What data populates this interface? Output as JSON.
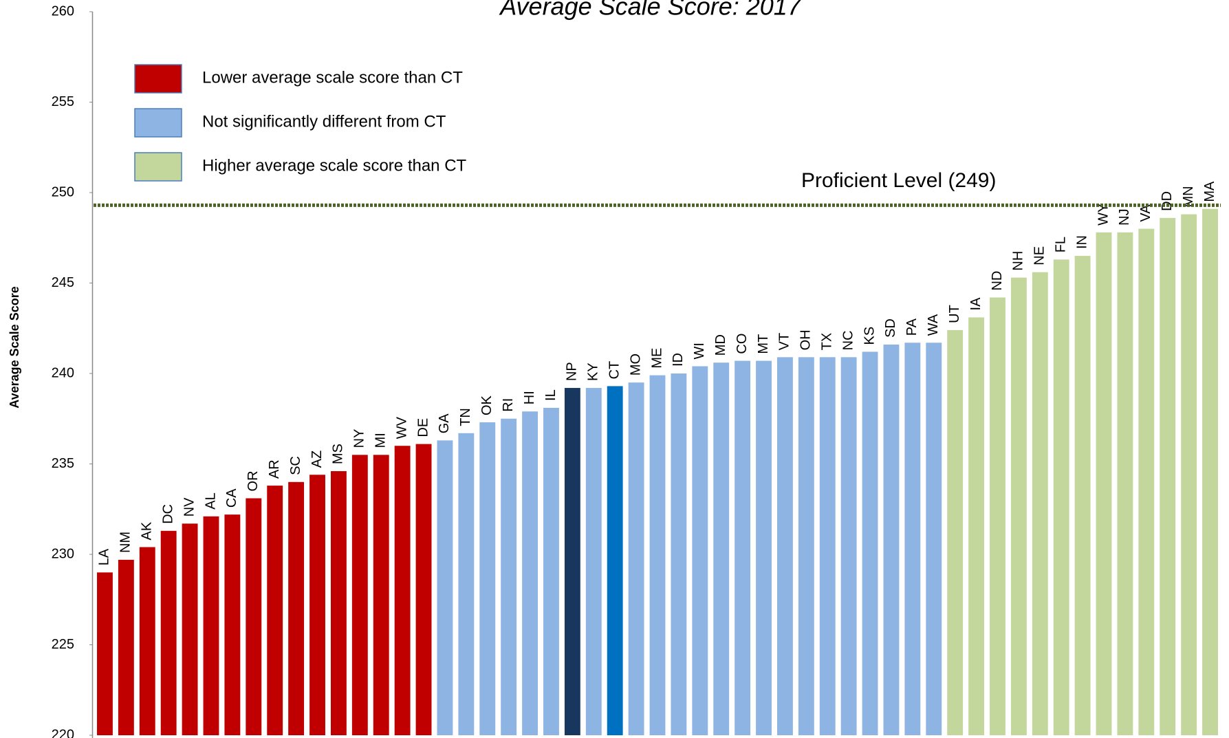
{
  "chart_data": {
    "type": "bar",
    "title": "Average Scale Score: 2017",
    "y_label": "Average Scale Score",
    "categories": [
      "LA",
      "NM",
      "AK",
      "DC",
      "NV",
      "AL",
      "CA",
      "OR",
      "AR",
      "SC",
      "AZ",
      "MS",
      "NY",
      "MI",
      "WV",
      "DE",
      "GA",
      "TN",
      "OK",
      "RI",
      "HI",
      "IL",
      "NP",
      "KY",
      "CT",
      "MO",
      "ME",
      "ID",
      "WI",
      "MD",
      "CO",
      "MT",
      "VT",
      "OH",
      "TX",
      "NC",
      "KS",
      "SD",
      "PA",
      "WA",
      "UT",
      "IA",
      "ND",
      "NH",
      "NE",
      "FL",
      "IN",
      "WY",
      "NJ",
      "VA",
      "DD",
      "MN",
      "MA"
    ],
    "values": [
      229.0,
      229.7,
      230.4,
      231.3,
      231.7,
      232.1,
      232.2,
      233.1,
      233.8,
      234.0,
      234.4,
      234.6,
      235.5,
      235.5,
      236.0,
      236.1,
      236.3,
      236.7,
      237.3,
      237.5,
      237.9,
      238.1,
      239.2,
      239.2,
      239.3,
      239.5,
      239.9,
      240.0,
      240.4,
      240.6,
      240.7,
      240.7,
      240.9,
      240.9,
      240.9,
      240.9,
      241.2,
      241.6,
      241.7,
      241.7,
      242.4,
      243.1,
      244.2,
      245.3,
      245.6,
      246.3,
      246.5,
      247.8,
      247.8,
      248.0,
      248.6,
      248.8,
      249.1
    ],
    "colors": [
      "#c00000",
      "#c00000",
      "#c00000",
      "#c00000",
      "#c00000",
      "#c00000",
      "#c00000",
      "#c00000",
      "#c00000",
      "#c00000",
      "#c00000",
      "#c00000",
      "#c00000",
      "#c00000",
      "#c00000",
      "#c00000",
      "#8db4e2",
      "#8db4e2",
      "#8db4e2",
      "#8db4e2",
      "#8db4e2",
      "#8db4e2",
      "#17375e",
      "#8db4e2",
      "#0070c0",
      "#8db4e2",
      "#8db4e2",
      "#8db4e2",
      "#8db4e2",
      "#8db4e2",
      "#8db4e2",
      "#8db4e2",
      "#8db4e2",
      "#8db4e2",
      "#8db4e2",
      "#8db4e2",
      "#8db4e2",
      "#8db4e2",
      "#8db4e2",
      "#8db4e2",
      "#c3d69b",
      "#c3d69b",
      "#c3d69b",
      "#c3d69b",
      "#c3d69b",
      "#c3d69b",
      "#c3d69b",
      "#c3d69b",
      "#c3d69b",
      "#c3d69b",
      "#c3d69b",
      "#c3d69b",
      "#c3d69b"
    ],
    "legend": [
      {
        "label": "Lower average scale score than CT",
        "color": "#c00000"
      },
      {
        "label": "Not significantly different from CT",
        "color": "#8db4e2"
      },
      {
        "label": "Higher average scale score than CT",
        "color": "#c3d69b"
      }
    ],
    "reference_line": {
      "value": 249.3,
      "label": "Proficient Level (249)",
      "color": "#4f6228"
    },
    "ylim": [
      220,
      260
    ],
    "yticks": [
      220,
      225,
      230,
      235,
      240,
      245,
      250,
      255,
      260
    ]
  }
}
